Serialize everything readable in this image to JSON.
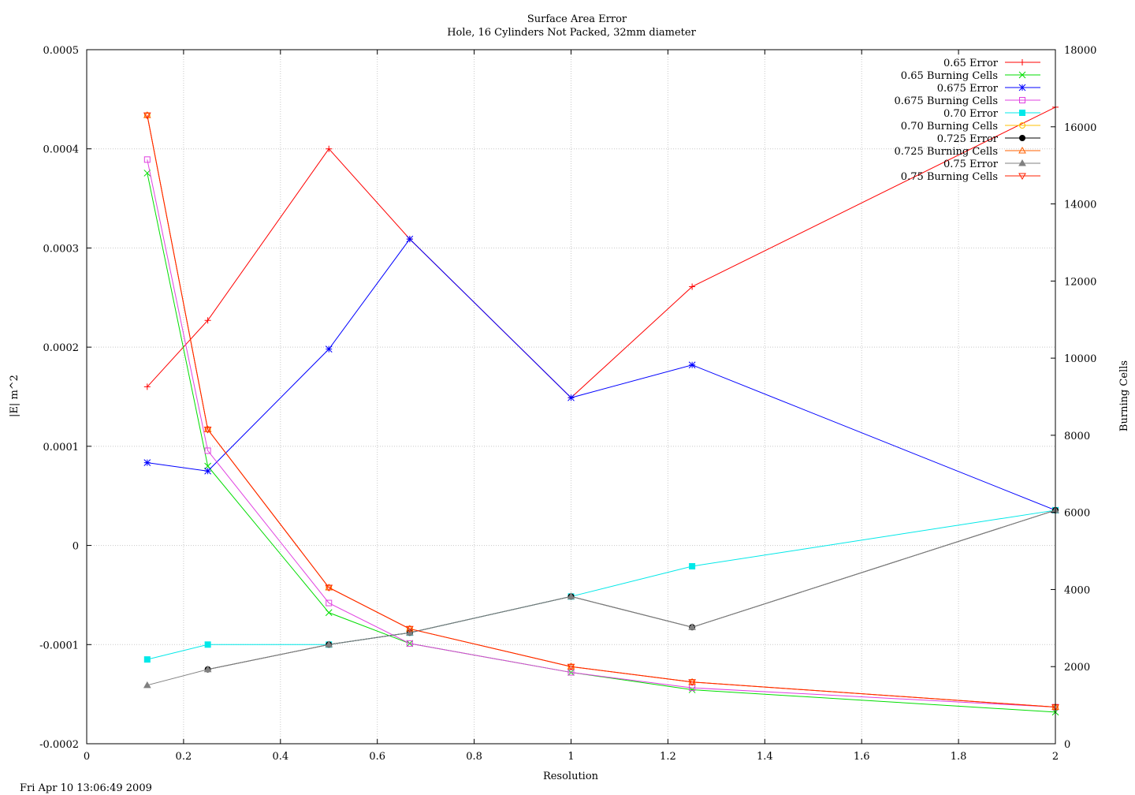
{
  "timestamp": "Fri Apr 10 13:06:49 2009",
  "chart_data": {
    "type": "line",
    "title": "Surface Area Error",
    "subtitle": "Hole, 16 Cylinders Not Packed, 32mm diameter",
    "xlabel": "Resolution",
    "ylabel": "|E| m^2",
    "y2label": "Burning Cells",
    "xlim": [
      0,
      2
    ],
    "ylim": [
      -0.0002,
      0.0005
    ],
    "y2lim": [
      0,
      18000
    ],
    "xticks": [
      0,
      0.2,
      0.4,
      0.6,
      0.8,
      1,
      1.2,
      1.4,
      1.6,
      1.8,
      2
    ],
    "xtick_labels": [
      "0",
      "0.2",
      "0.4",
      "0.6",
      "0.8",
      "1",
      "1.2",
      "1.4",
      "1.6",
      "1.8",
      "2"
    ],
    "yticks": [
      -0.0002,
      -0.0001,
      0,
      0.0001,
      0.0002,
      0.0003,
      0.0004,
      0.0005
    ],
    "ytick_labels": [
      "-0.0002",
      "-0.0001",
      "0",
      "0.0001",
      "0.0002",
      "0.0003",
      "0.0004",
      "0.0005"
    ],
    "y2ticks": [
      0,
      2000,
      4000,
      6000,
      8000,
      10000,
      12000,
      14000,
      16000,
      18000
    ],
    "y2tick_labels": [
      "0",
      "2000",
      "4000",
      "6000",
      "8000",
      "10000",
      "12000",
      "14000",
      "16000",
      "18000"
    ],
    "grid": true,
    "legend_position": "top-right",
    "ylabel_color": "#ff0000",
    "y2label_color": "#00cc00",
    "x": [
      0.125,
      0.25,
      0.5,
      0.667,
      1,
      1.25,
      2
    ],
    "series": [
      {
        "name": "0.65 Error",
        "axis": "y",
        "color": "#ff0000",
        "marker": "plus",
        "values": [
          0.00016,
          0.000227,
          0.0004,
          0.000309,
          0.000149,
          0.000261,
          0.000442
        ]
      },
      {
        "name": "0.65 Burning Cells",
        "axis": "y2",
        "color": "#00dd00",
        "marker": "x",
        "values": [
          14800,
          7200,
          3400,
          2600,
          1850,
          1400,
          820
        ]
      },
      {
        "name": "0.675 Error",
        "axis": "y",
        "color": "#0000ff",
        "marker": "star",
        "values": [
          8.35e-05,
          7.5e-05,
          0.000198,
          0.000309,
          0.000149,
          0.000182,
          3.55e-05
        ]
      },
      {
        "name": "0.675 Burning Cells",
        "axis": "y2",
        "color": "#e040e0",
        "marker": "square-open",
        "values": [
          15150,
          7600,
          3650,
          2600,
          1850,
          1450,
          950
        ]
      },
      {
        "name": "0.70 Error",
        "axis": "y",
        "color": "#00e8e8",
        "marker": "square-filled",
        "values": [
          -0.000115,
          -0.0001,
          -0.0001,
          -8.8e-05,
          -5.15e-05,
          -2.1e-05,
          3.55e-05
        ]
      },
      {
        "name": "0.70 Burning Cells",
        "axis": "y2",
        "color": "#ffc000",
        "marker": "circle-open",
        "values": [
          16300,
          8150,
          4050,
          2980,
          2000,
          1600,
          950
        ]
      },
      {
        "name": "0.725 Error",
        "axis": "y",
        "color": "#000000",
        "marker": "circle-filled",
        "values": [
          null,
          -0.000125,
          -0.0001,
          -8.8e-05,
          -5.15e-05,
          -8.25e-05,
          3.55e-05
        ]
      },
      {
        "name": "0.725 Burning Cells",
        "axis": "y2",
        "color": "#ff6000",
        "marker": "triangle-open",
        "values": [
          16300,
          8150,
          4050,
          2980,
          2000,
          1600,
          950
        ]
      },
      {
        "name": "0.75 Error",
        "axis": "y",
        "color": "#808080",
        "marker": "triangle-filled",
        "values": [
          -0.000141,
          -0.000125,
          -0.0001,
          -8.8e-05,
          -5.15e-05,
          -8.25e-05,
          3.55e-05
        ]
      },
      {
        "name": "0.75 Burning Cells",
        "axis": "y2",
        "color": "#ff2000",
        "marker": "triangle-down-open",
        "values": [
          16300,
          8150,
          4050,
          2980,
          2000,
          1600,
          950
        ]
      }
    ]
  }
}
